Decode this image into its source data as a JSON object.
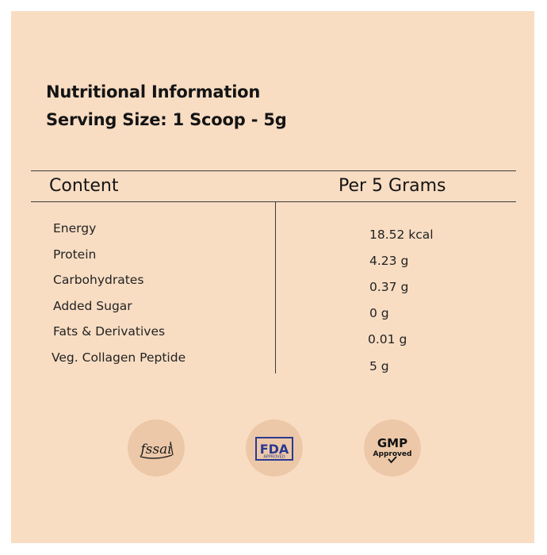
{
  "title": "Nutritional Information",
  "serving": "Serving Size: 1 Scoop - 5g",
  "table": {
    "col_content": "Content",
    "col_per": "Per 5 Grams",
    "rows": [
      {
        "name": "Energy",
        "value": "18.52 kcal"
      },
      {
        "name": "Protein",
        "value": "4.23 g"
      },
      {
        "name": "Carbohydrates",
        "value": "0.37 g"
      },
      {
        "name": "Added Sugar",
        "value": "0 g"
      },
      {
        "name": "Fats & Derivatives",
        "value": "0.01 g"
      },
      {
        "name": "Veg. Collagen Peptide",
        "value": "5 g"
      }
    ]
  },
  "badges": {
    "fssai": {
      "label": "fssai",
      "icon": "fssai-logo-icon"
    },
    "fda": {
      "label": "FDA",
      "sub": "APPROVED",
      "icon": "fda-approved-icon"
    },
    "gmp": {
      "label": "GMP",
      "sub": "Approved",
      "icon": "gmp-approved-icon"
    }
  },
  "colors": {
    "background": "#f8ddc3",
    "badge": "#ecc8a8",
    "fda_blue": "#2b3990"
  }
}
